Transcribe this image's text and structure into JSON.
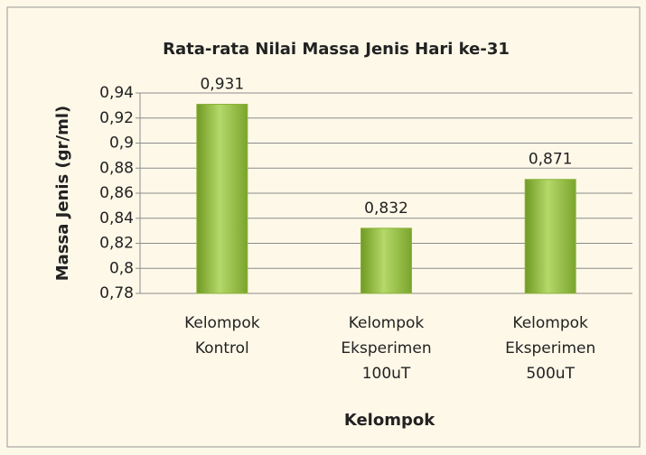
{
  "chart_data": {
    "type": "bar",
    "title": "Rata-rata Nilai Massa Jenis Hari ke-31",
    "y_label": "Massa Jenis (gr/ml)",
    "x_label": "Kelompok",
    "categories": [
      [
        "Kelompok",
        "Kontrol"
      ],
      [
        "Kelompok",
        "Eksperimen",
        "100uT"
      ],
      [
        "Kelompok",
        "Eksperimen",
        "500uT"
      ]
    ],
    "values": [
      0.931,
      0.832,
      0.871
    ],
    "value_labels": [
      "0,931",
      "0,832",
      "0,871"
    ],
    "color": "#8db33a",
    "ylim": [
      0.78,
      0.94
    ],
    "yticks": [
      {
        "value": 0.78,
        "label": "0,78"
      },
      {
        "value": 0.8,
        "label": "0,8"
      },
      {
        "value": 0.82,
        "label": "0,82"
      },
      {
        "value": 0.84,
        "label": "0,84"
      },
      {
        "value": 0.86,
        "label": "0,86"
      },
      {
        "value": 0.88,
        "label": "0,88"
      },
      {
        "value": 0.9,
        "label": "0,9"
      },
      {
        "value": 0.92,
        "label": "0,92"
      },
      {
        "value": 0.94,
        "label": "0,94"
      }
    ],
    "grid": true
  }
}
